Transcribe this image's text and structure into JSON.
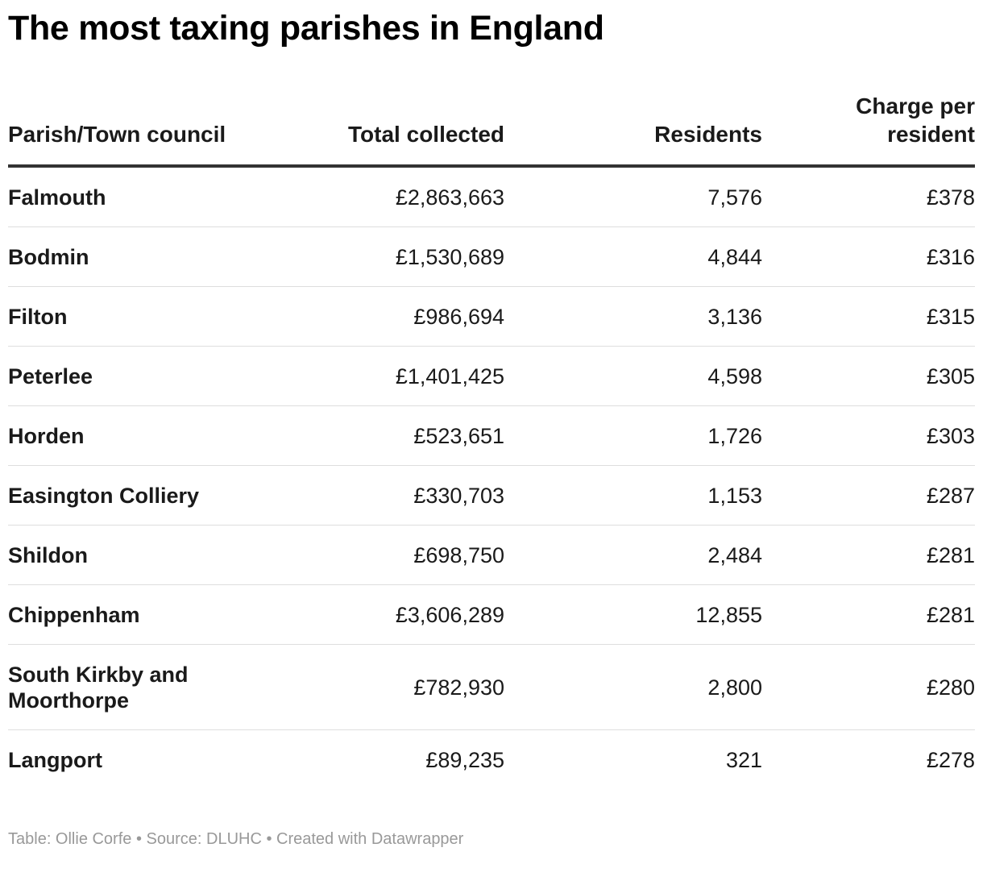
{
  "title": "The most taxing parishes in England",
  "chart_data": {
    "type": "table",
    "title": "The most taxing parishes in England",
    "columns": [
      "Parish/Town council",
      "Total collected",
      "Residents",
      "Charge per resident"
    ],
    "rows": [
      {
        "name": "Falmouth",
        "total": "£2,863,663",
        "residents": "7,576",
        "charge": "£378"
      },
      {
        "name": "Bodmin",
        "total": "£1,530,689",
        "residents": "4,844",
        "charge": "£316"
      },
      {
        "name": "Filton",
        "total": "£986,694",
        "residents": "3,136",
        "charge": "£315"
      },
      {
        "name": "Peterlee",
        "total": "£1,401,425",
        "residents": "4,598",
        "charge": "£305"
      },
      {
        "name": "Horden",
        "total": "£523,651",
        "residents": "1,726",
        "charge": "£303"
      },
      {
        "name": "Easington Colliery",
        "total": "£330,703",
        "residents": "1,153",
        "charge": "£287"
      },
      {
        "name": "Shildon",
        "total": "£698,750",
        "residents": "2,484",
        "charge": "£281"
      },
      {
        "name": "Chippenham",
        "total": "£3,606,289",
        "residents": "12,855",
        "charge": "£281"
      },
      {
        "name": "South Kirkby and Moorthorpe",
        "total": "£782,930",
        "residents": "2,800",
        "charge": "£280"
      },
      {
        "name": "Langport",
        "total": "£89,235",
        "residents": "321",
        "charge": "£278"
      }
    ]
  },
  "footer": "Table: Ollie Corfe • Source: DLUHC • Created with Datawrapper"
}
